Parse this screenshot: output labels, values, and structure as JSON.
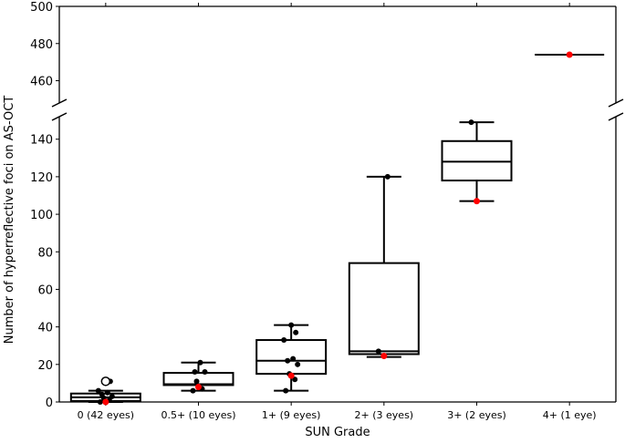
{
  "chart_data": {
    "type": "box",
    "title": "",
    "xlabel": "SUN Grade",
    "ylabel": "Number of hyperreflective foci on AS-OCT",
    "y_axis_broken": true,
    "ylim_lower": [
      0,
      152
    ],
    "ylim_upper": [
      448,
      500
    ],
    "yticks_lower": [
      0,
      20,
      40,
      60,
      80,
      100,
      120,
      140
    ],
    "yticks_upper": [
      460,
      480,
      500
    ],
    "categories": [
      "0 (42 eyes)",
      "0.5+ (10 eyes)",
      "1+ (9 eyes)",
      "2+ (3 eyes)",
      "3+ (2 eyes)",
      "4+ (1 eye)"
    ],
    "boxes": [
      {
        "q1": 0.5,
        "median": 2.5,
        "q3": 4.5,
        "whisker_low": 0,
        "whisker_high": 6,
        "outliers": [
          11
        ],
        "points": [
          0,
          1,
          2,
          3,
          4,
          5,
          6,
          11
        ],
        "highlight": 0
      },
      {
        "q1": 9,
        "median": 9.5,
        "q3": 15.5,
        "whisker_low": 6,
        "whisker_high": 21,
        "outliers": [],
        "points": [
          6,
          7,
          11,
          16,
          16,
          21
        ],
        "highlight": 8
      },
      {
        "q1": 15,
        "median": 22,
        "q3": 33,
        "whisker_low": 6,
        "whisker_high": 41,
        "outliers": [],
        "points": [
          6,
          12,
          15,
          20,
          22,
          23,
          33,
          37,
          41
        ],
        "highlight": 14
      },
      {
        "q1": 25.5,
        "median": 27,
        "q3": 74,
        "whisker_low": 24,
        "whisker_high": 120,
        "outliers": [],
        "points": [
          27,
          120
        ],
        "highlight": 24.5
      },
      {
        "q1": 118,
        "median": 128,
        "q3": 139,
        "whisker_low": 107,
        "whisker_high": 149,
        "outliers": [],
        "points": [
          149
        ],
        "highlight": 107
      },
      {
        "q1": 474,
        "median": 474,
        "q3": 474,
        "whisker_low": 474,
        "whisker_high": 474,
        "outliers": [],
        "points": [],
        "highlight": 474
      }
    ],
    "colors": {
      "box": "#000000",
      "point": "#000000",
      "highlight": "#ff0000"
    }
  }
}
